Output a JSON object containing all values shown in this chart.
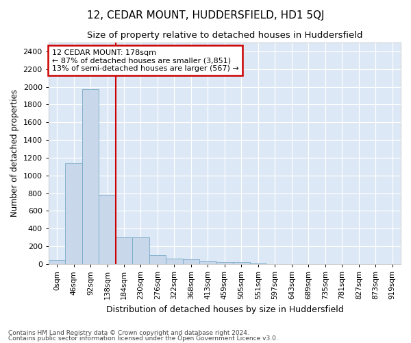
{
  "title": "12, CEDAR MOUNT, HUDDERSFIELD, HD1 5QJ",
  "subtitle": "Size of property relative to detached houses in Huddersfield",
  "xlabel": "Distribution of detached houses by size in Huddersfield",
  "ylabel": "Number of detached properties",
  "footnote1": "Contains HM Land Registry data © Crown copyright and database right 2024.",
  "footnote2": "Contains public sector information licensed under the Open Government Licence v3.0.",
  "annotation_line1": "12 CEDAR MOUNT: 178sqm",
  "annotation_line2": "← 87% of detached houses are smaller (3,851)",
  "annotation_line3": "13% of semi-detached houses are larger (567) →",
  "bar_color": "#c8d8ea",
  "bar_edgecolor": "#7aaac8",
  "vline_color": "#cc0000",
  "background_color": "#dce8f5",
  "fig_background_color": "#ffffff",
  "annotation_box_color": "#ffffff",
  "annotation_box_edge": "#cc0000",
  "grid_color": "#ffffff",
  "categories": [
    "0sqm",
    "46sqm",
    "92sqm",
    "138sqm",
    "184sqm",
    "230sqm",
    "276sqm",
    "322sqm",
    "368sqm",
    "413sqm",
    "459sqm",
    "505sqm",
    "551sqm",
    "597sqm",
    "643sqm",
    "689sqm",
    "735sqm",
    "781sqm",
    "827sqm",
    "873sqm",
    "919sqm"
  ],
  "values": [
    50,
    1140,
    1970,
    780,
    300,
    300,
    100,
    60,
    55,
    30,
    25,
    20,
    5,
    3,
    2,
    2,
    1,
    0,
    0,
    0,
    0
  ],
  "ylim": [
    0,
    2500
  ],
  "yticks": [
    0,
    200,
    400,
    600,
    800,
    1000,
    1200,
    1400,
    1600,
    1800,
    2000,
    2200,
    2400
  ],
  "vline_x": 3.5,
  "figsize": [
    6.0,
    5.0
  ],
  "dpi": 100
}
